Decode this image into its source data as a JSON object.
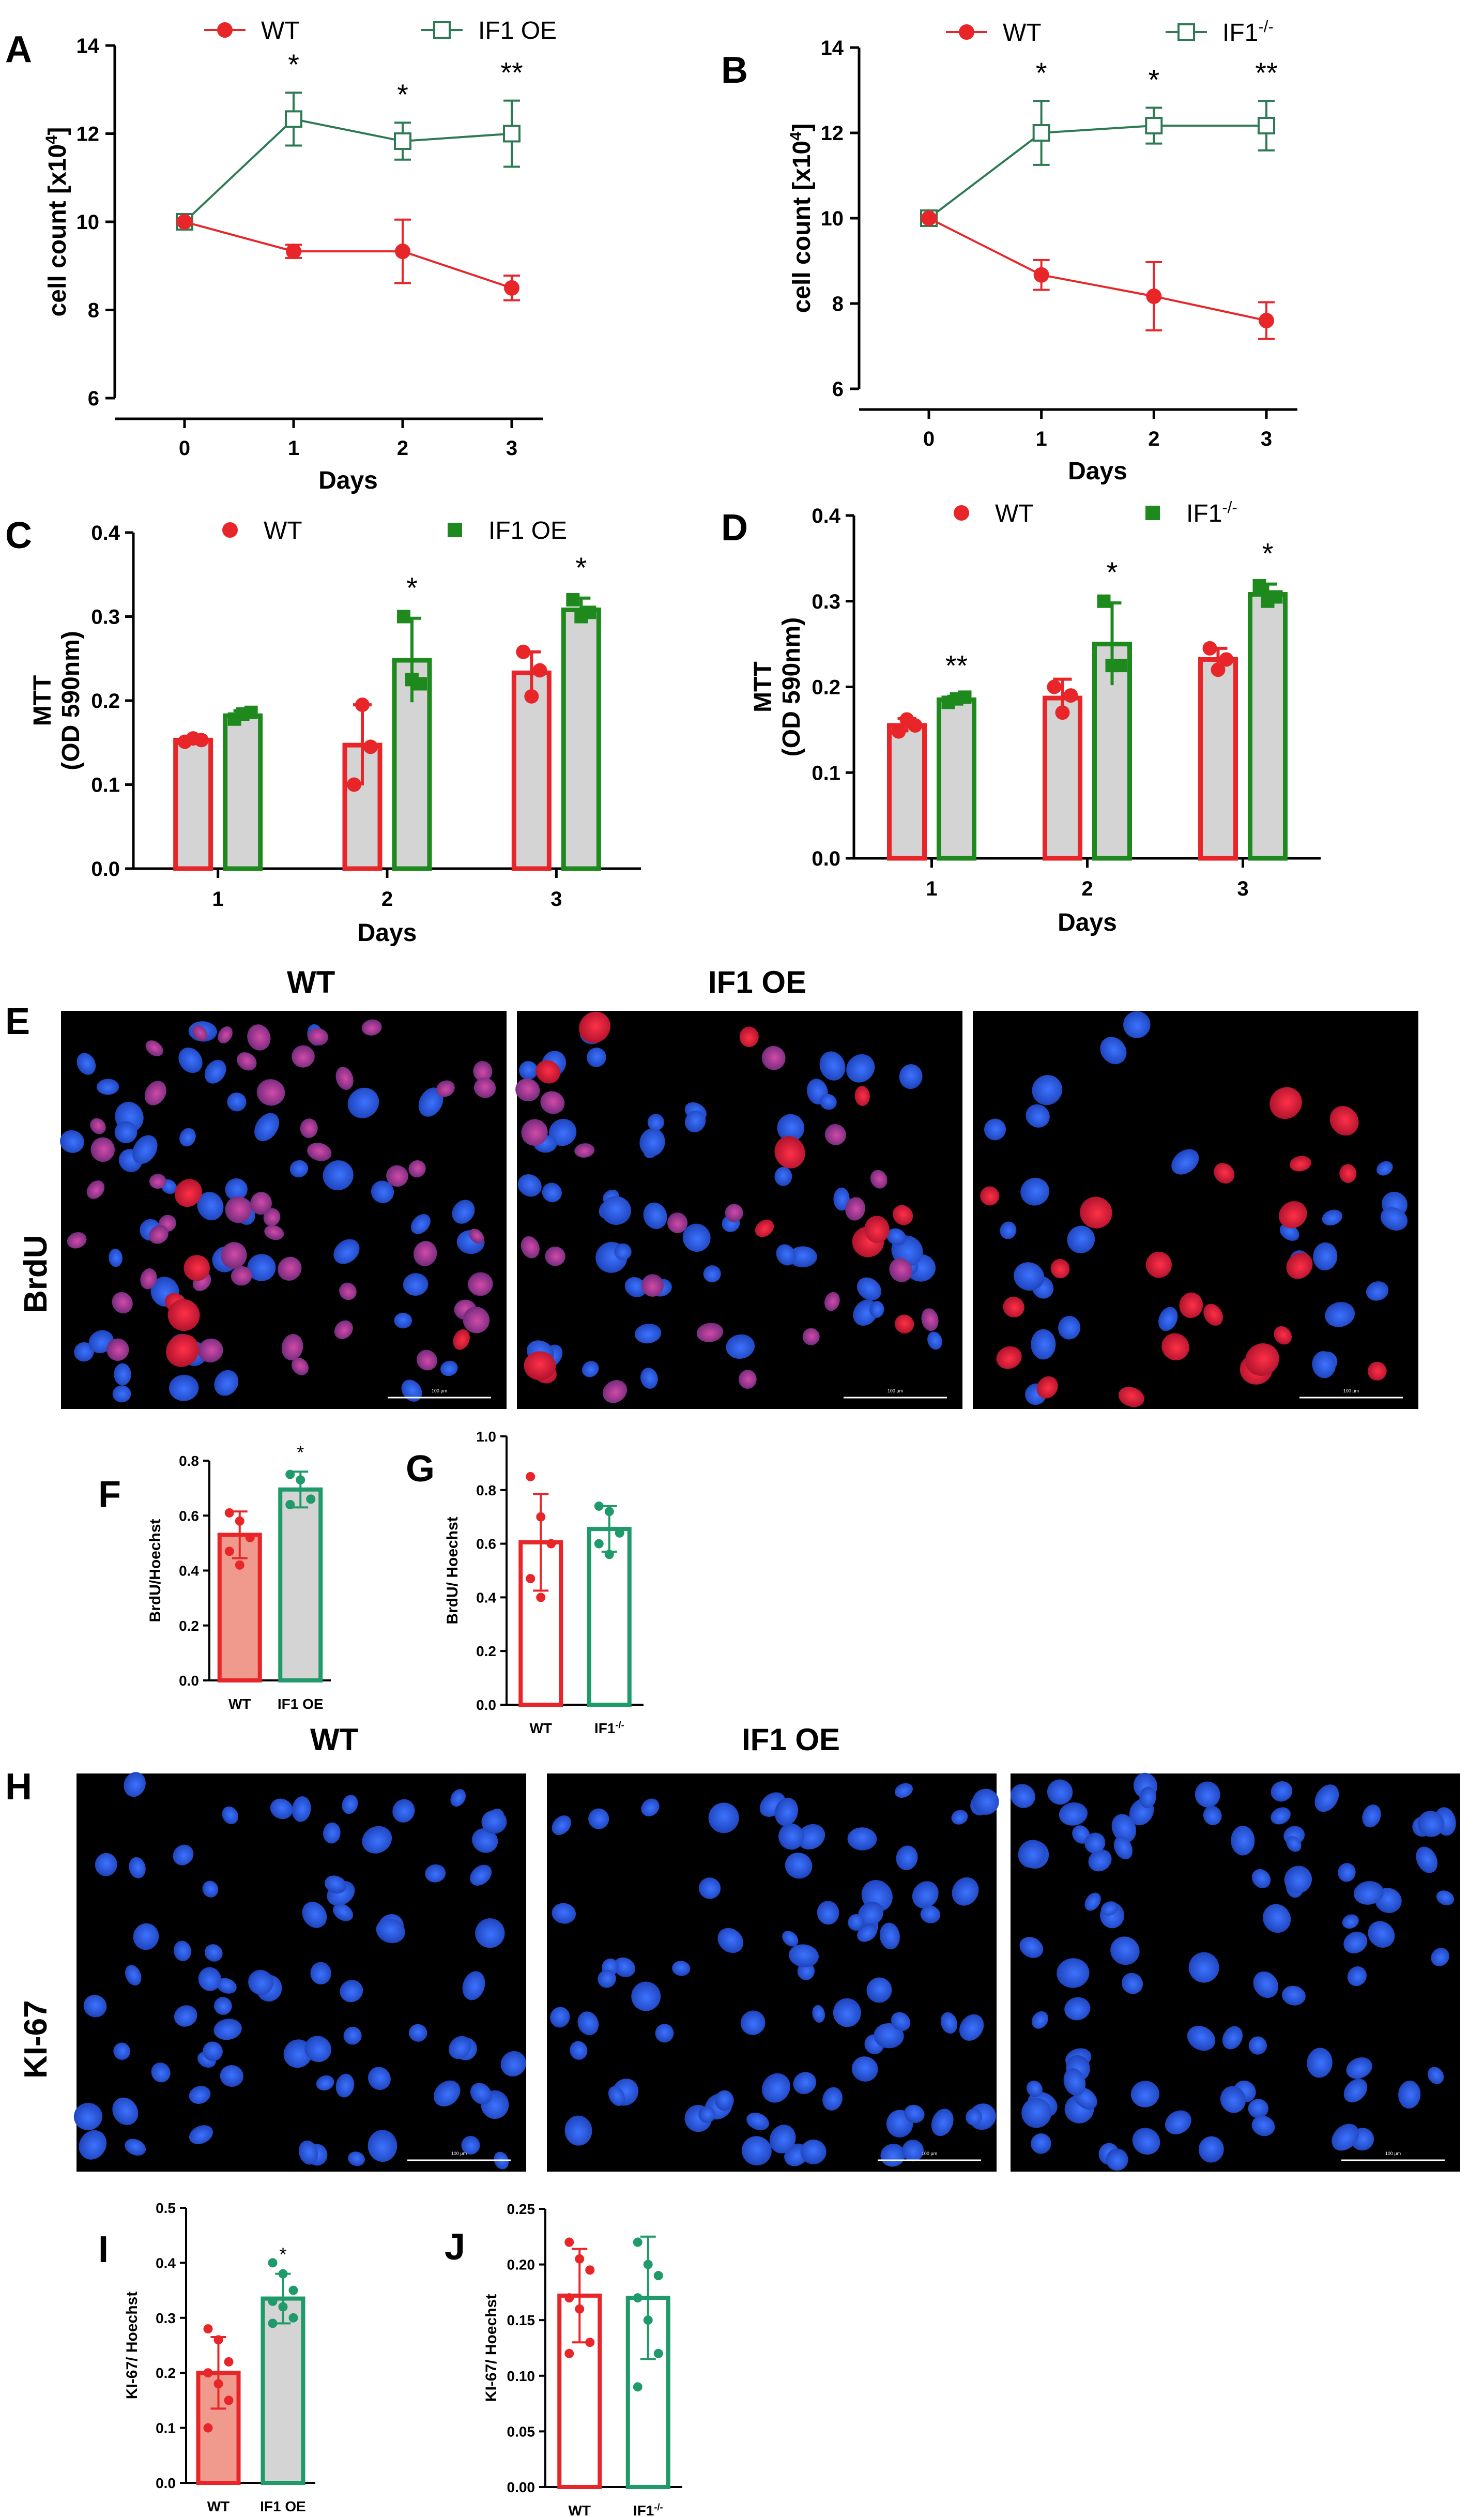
{
  "colors": {
    "wt": "#e8262a",
    "if1_oe_line": "#2e7a55",
    "if1_bar": "#1e8a1e",
    "teal": "#1f9a6a",
    "bar_fill": "#d4d4d4",
    "nucleus_blue": "#2f5ff0",
    "brdu_red": "#f0203a",
    "brdu_pink": "#c23a9c"
  },
  "panel_labels": [
    "A",
    "B",
    "C",
    "D",
    "E",
    "F",
    "G",
    "H",
    "I",
    "J"
  ],
  "microscopy": {
    "brdu": {
      "col_titles": [
        "WT",
        "IF1 OE"
      ],
      "row_title": "BrdU",
      "scale_label": "100 µm"
    },
    "ki67": {
      "col_titles": [
        "WT",
        "IF1 OE"
      ],
      "row_title": "KI-67",
      "scale_label": "100 µm"
    }
  },
  "chart_data": [
    {
      "id": "A",
      "type": "line",
      "xlabel": "Days",
      "ylabel": "cell count [x10⁴]",
      "x": [
        0,
        1,
        2,
        3
      ],
      "xlim": [
        0,
        3
      ],
      "ylim": [
        6,
        14
      ],
      "yticks": [
        6,
        8,
        10,
        12,
        14
      ],
      "series": [
        {
          "name": "WT",
          "values": [
            10.0,
            9.33,
            9.33,
            8.5
          ],
          "errors": [
            0.05,
            0.15,
            0.72,
            0.28
          ],
          "marker": "filled-circle",
          "color_key": "wt"
        },
        {
          "name": "IF1 OE",
          "values": [
            10.0,
            12.33,
            11.83,
            12.0
          ],
          "errors": [
            0.05,
            0.6,
            0.42,
            0.75
          ],
          "marker": "open-square",
          "color_key": "if1_oe_line"
        }
      ],
      "annotations": [
        {
          "x": 1,
          "label": "*"
        },
        {
          "x": 2,
          "label": "*"
        },
        {
          "x": 3,
          "label": "**"
        }
      ],
      "legend": "top"
    },
    {
      "id": "B",
      "type": "line",
      "xlabel": "Days",
      "ylabel": "cell count [x10⁴]",
      "x": [
        0,
        1,
        2,
        3
      ],
      "xlim": [
        0,
        3
      ],
      "ylim": [
        6,
        14
      ],
      "yticks": [
        6,
        8,
        10,
        12,
        14
      ],
      "series": [
        {
          "name": "WT",
          "values": [
            10.0,
            8.67,
            8.17,
            7.6
          ],
          "errors": [
            0.05,
            0.35,
            0.8,
            0.43
          ],
          "marker": "filled-circle",
          "color_key": "wt"
        },
        {
          "name": "IF1-/-",
          "values": [
            10.0,
            12.0,
            12.17,
            12.17
          ],
          "errors": [
            0.05,
            0.75,
            0.42,
            0.58
          ],
          "marker": "open-square",
          "color_key": "if1_oe_line"
        }
      ],
      "annotations": [
        {
          "x": 1,
          "label": "*"
        },
        {
          "x": 2,
          "label": "*"
        },
        {
          "x": 3,
          "label": "**"
        }
      ],
      "legend": "top"
    },
    {
      "id": "C",
      "type": "bar",
      "xlabel": "Days",
      "ylabel_lines": [
        "MTT",
        "(OD 590nm)"
      ],
      "categories": [
        "1",
        "2",
        "3"
      ],
      "ylim": [
        0,
        0.4
      ],
      "yticks": [
        "0.0",
        "0.1",
        "0.2",
        "0.3",
        "0.4"
      ],
      "series": [
        {
          "name": "WT",
          "values": [
            0.153,
            0.147,
            0.233
          ],
          "errors": [
            0.004,
            0.048,
            0.025
          ],
          "points": [
            [
              0.151,
              0.155,
              0.153
            ],
            [
              0.1,
              0.195,
              0.145
            ],
            [
              0.258,
              0.205,
              0.236
            ]
          ],
          "color_key": "wt"
        },
        {
          "name": "IF1 OE",
          "values": [
            0.182,
            0.248,
            0.308
          ],
          "errors": [
            0.006,
            0.05,
            0.014
          ],
          "points": [
            [
              0.178,
              0.184,
              0.186
            ],
            [
              0.3,
              0.225,
              0.22
            ],
            [
              0.32,
              0.3,
              0.305
            ]
          ],
          "color_key": "if1_bar"
        }
      ],
      "annotations": [
        {
          "category": "2",
          "label": "*"
        },
        {
          "category": "3",
          "label": "*"
        }
      ],
      "legend": "top"
    },
    {
      "id": "D",
      "type": "bar",
      "xlabel": "Days",
      "ylabel_lines": [
        "MTT",
        "(OD 590nm)"
      ],
      "categories": [
        "1",
        "2",
        "3"
      ],
      "ylim": [
        0,
        0.4
      ],
      "yticks": [
        "0.0",
        "0.1",
        "0.2",
        "0.3",
        "0.4"
      ],
      "series": [
        {
          "name": "WT",
          "values": [
            0.155,
            0.187,
            0.232
          ],
          "errors": [
            0.008,
            0.022,
            0.013
          ],
          "points": [
            [
              0.148,
              0.162,
              0.155
            ],
            [
              0.2,
              0.17,
              0.19
            ],
            [
              0.245,
              0.22,
              0.232
            ]
          ],
          "color_key": "wt"
        },
        {
          "name": "IF1-/-",
          "values": [
            0.185,
            0.25,
            0.308
          ],
          "errors": [
            0.004,
            0.048,
            0.012
          ],
          "points": [
            [
              0.182,
              0.186,
              0.188
            ],
            [
              0.3,
              0.225,
              0.225
            ],
            [
              0.318,
              0.3,
              0.305
            ]
          ],
          "color_key": "if1_bar"
        }
      ],
      "annotations": [
        {
          "category": "1",
          "label": "**"
        },
        {
          "category": "2",
          "label": "*"
        },
        {
          "category": "3",
          "label": "*"
        }
      ],
      "legend": "top"
    },
    {
      "id": "F",
      "type": "bar",
      "ylabel": "BrdU/Hoechst",
      "categories": [
        "WT",
        "IF1  OE"
      ],
      "ylim": [
        0,
        0.8
      ],
      "yticks": [
        "0.0",
        "0.2",
        "0.4",
        "0.6",
        "0.8"
      ],
      "series": [
        {
          "name": "",
          "values": [
            0.53,
            0.695
          ],
          "errors": [
            0.085,
            0.065
          ],
          "points": [
            [
              0.61,
              0.58,
              0.52,
              0.47,
              0.42
            ],
            [
              0.75,
              0.73,
              0.66,
              0.64
            ]
          ],
          "color_keys": [
            "wt",
            "teal"
          ]
        }
      ],
      "annotations": [
        {
          "category": "IF1  OE",
          "label": "*"
        }
      ]
    },
    {
      "id": "G",
      "type": "bar",
      "ylabel": "BrdU/ Hoechst",
      "categories": [
        "WT",
        "IF1-/-"
      ],
      "ylim": [
        0,
        1.0
      ],
      "yticks": [
        "0.0",
        "0.2",
        "0.4",
        "0.6",
        "0.8",
        "1.0"
      ],
      "series": [
        {
          "name": "",
          "values": [
            0.605,
            0.655
          ],
          "errors": [
            0.18,
            0.085
          ],
          "points": [
            [
              0.85,
              0.7,
              0.6,
              0.47,
              0.4
            ],
            [
              0.74,
              0.72,
              0.64,
              0.6,
              0.56
            ]
          ],
          "color_keys": [
            "wt",
            "teal"
          ]
        }
      ]
    },
    {
      "id": "I",
      "type": "bar",
      "ylabel": "KI-67/ Hoechst",
      "categories": [
        "WT",
        "IF1 OE"
      ],
      "ylim": [
        0,
        0.5
      ],
      "yticks": [
        "0.0",
        "0.1",
        "0.2",
        "0.3",
        "0.4",
        "0.5"
      ],
      "series": [
        {
          "name": "",
          "values": [
            0.2,
            0.335
          ],
          "errors": [
            0.065,
            0.045
          ],
          "points": [
            [
              0.28,
              0.26,
              0.22,
              0.2,
              0.18,
              0.15,
              0.1
            ],
            [
              0.4,
              0.38,
              0.35,
              0.33,
              0.32,
              0.3,
              0.29
            ]
          ],
          "color_keys": [
            "wt",
            "teal"
          ]
        }
      ],
      "annotations": [
        {
          "category": "IF1 OE",
          "label": "*"
        }
      ]
    },
    {
      "id": "J",
      "type": "bar",
      "ylabel": "KI-67/ Hoechst",
      "categories": [
        "WT",
        "IF1-/-"
      ],
      "ylim": [
        0,
        0.25
      ],
      "yticks": [
        "0.00",
        "0.05",
        "0.10",
        "0.15",
        "0.20",
        "0.25"
      ],
      "series": [
        {
          "name": "",
          "values": [
            0.172,
            0.17
          ],
          "errors": [
            0.042,
            0.055
          ],
          "points": [
            [
              0.22,
              0.205,
              0.195,
              0.17,
              0.16,
              0.13,
              0.12
            ],
            [
              0.22,
              0.2,
              0.19,
              0.17,
              0.15,
              0.12,
              0.09
            ]
          ],
          "color_keys": [
            "wt",
            "teal"
          ]
        }
      ]
    }
  ]
}
